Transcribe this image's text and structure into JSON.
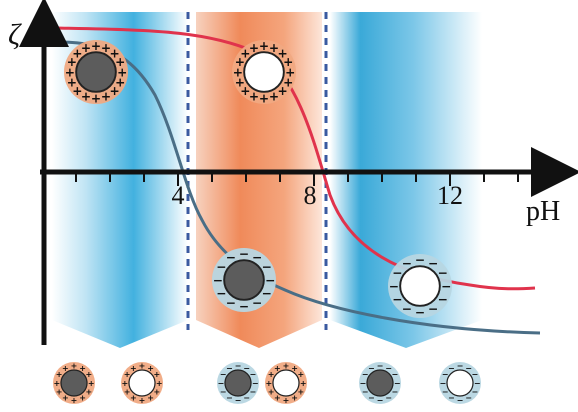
{
  "axis": {
    "y_label": "ζ",
    "x_label": "pH",
    "ticks": [
      "4",
      "8",
      "12"
    ]
  },
  "colors": {
    "blue_band": "#2aa6d9",
    "orange_band": "#f08a5a",
    "red_curve": "#e0334c",
    "slate_curve": "#4a6e86",
    "dark_core": "#5c5c5c",
    "white_core": "#ffffff",
    "positive_shell": "#f0a982",
    "negative_shell": "#b7d6e2",
    "divider": "#3a5aa0"
  },
  "particles": {
    "positive_sign": "+",
    "negative_sign": "−"
  },
  "bottom_row": [
    {
      "core": "dark",
      "charge": "positive"
    },
    {
      "core": "white",
      "charge": "positive"
    },
    {
      "core": "dark",
      "charge": "negative"
    },
    {
      "core": "white",
      "charge": "positive"
    },
    {
      "core": "dark",
      "charge": "negative"
    },
    {
      "core": "white",
      "charge": "negative"
    }
  ]
}
